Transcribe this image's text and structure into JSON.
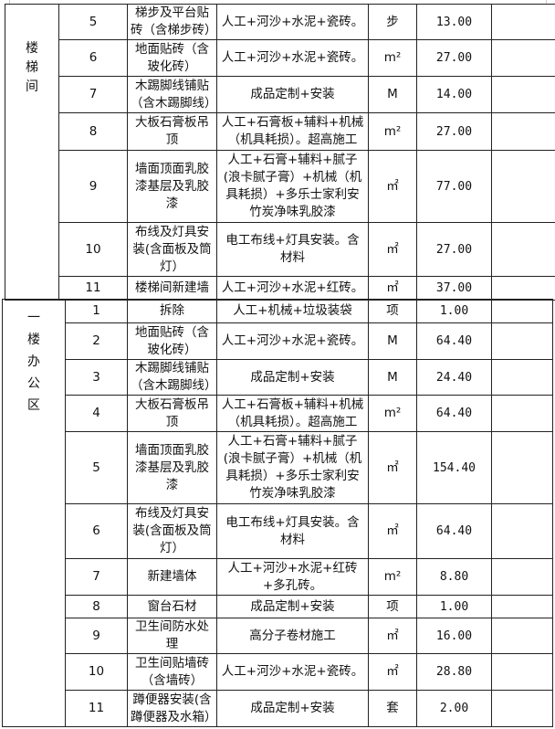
{
  "sections": [
    {
      "category": "楼梯间",
      "rows": [
        {
          "no": "5",
          "item": "梯步及平台贴砖（含梯步砖）",
          "desc": "人工+河沙+水泥+瓷砖。",
          "unit": "步",
          "qty": "13.00",
          "remark": ""
        },
        {
          "no": "6",
          "item": "地面贴砖（含玻化砖）",
          "desc": "人工+河沙+水泥+瓷砖。",
          "unit": "m²",
          "qty": "27.00",
          "remark": ""
        },
        {
          "no": "7",
          "item": "木踢脚线铺贴（含木踢脚线）",
          "desc": "成品定制+安装",
          "unit": "M",
          "qty": "14.00",
          "remark": ""
        },
        {
          "no": "8",
          "item": "大板石膏板吊顶",
          "desc": "人工+石膏板+辅料+机械（机具耗损）。超高施工",
          "unit": "m²",
          "qty": "27.00",
          "remark": ""
        },
        {
          "no": "9",
          "item": "墙面顶面乳胶漆基层及乳胶漆",
          "desc": "人工+石膏+辅料+腻子(浪卡腻子膏）+机械（机具耗损）+多乐士家利安竹炭净味乳胶漆",
          "unit": "㎡",
          "qty": "77.00",
          "remark": ""
        },
        {
          "no": "10",
          "item": "布线及灯具安装(含面板及筒灯）",
          "desc": "电工布线+灯具安装。含材料",
          "unit": "㎡",
          "qty": "27.00",
          "remark": ""
        },
        {
          "no": "11",
          "item": "楼梯间新建墙",
          "desc": "人工+河沙+水泥+红砖。",
          "unit": "㎡",
          "qty": "37.00",
          "remark": ""
        }
      ]
    },
    {
      "category": "一楼办公区",
      "rows": [
        {
          "no": "1",
          "item": "拆除",
          "desc": "人工+机械+垃圾装袋",
          "unit": "项",
          "qty": "1.00",
          "remark": ""
        },
        {
          "no": "2",
          "item": "地面贴砖（含玻化砖）",
          "desc": "人工+河沙+水泥+瓷砖。",
          "unit": "M",
          "qty": "64.40",
          "remark": ""
        },
        {
          "no": "3",
          "item": "木踢脚线铺贴（含木踢脚线）",
          "desc": "成品定制+安装",
          "unit": "M",
          "qty": "24.40",
          "remark": ""
        },
        {
          "no": "4",
          "item": "大板石膏板吊顶",
          "desc": "人工+石膏板+辅料+机械（机具耗损）。超高施工",
          "unit": "m²",
          "qty": "64.40",
          "remark": ""
        },
        {
          "no": "5",
          "item": "墙面顶面乳胶漆基层及乳胶漆",
          "desc": "人工+石膏+辅料+腻子(浪卡腻子膏）+机械（机具耗损）+多乐士家利安竹炭净味乳胶漆",
          "unit": "㎡",
          "qty": "154.40",
          "remark": ""
        },
        {
          "no": "6",
          "item": "布线及灯具安装(含面板及筒灯）",
          "desc": "电工布线+灯具安装。含材料",
          "unit": "㎡",
          "qty": "64.40",
          "remark": ""
        },
        {
          "no": "7",
          "item": "新建墙体",
          "desc": "人工+河沙+水泥+红砖+多孔砖。",
          "unit": "m²",
          "qty": "8.80",
          "remark": ""
        },
        {
          "no": "8",
          "item": "窗台石材",
          "desc": "成品定制+安装",
          "unit": "项",
          "qty": "1.00",
          "remark": ""
        },
        {
          "no": "9",
          "item": "卫生间防水处理",
          "desc": "高分子卷材施工",
          "unit": "㎡",
          "qty": "16.00",
          "remark": ""
        },
        {
          "no": "10",
          "item": "卫生间贴墙砖（含墙砖）",
          "desc": "人工+河沙+水泥+瓷砖。",
          "unit": "㎡",
          "qty": "28.80",
          "remark": ""
        },
        {
          "no": "11",
          "item": "蹲便器安装(含蹲便器及水箱）",
          "desc": "成品定制+安装",
          "unit": "套",
          "qty": "2.00",
          "remark": ""
        }
      ]
    }
  ]
}
